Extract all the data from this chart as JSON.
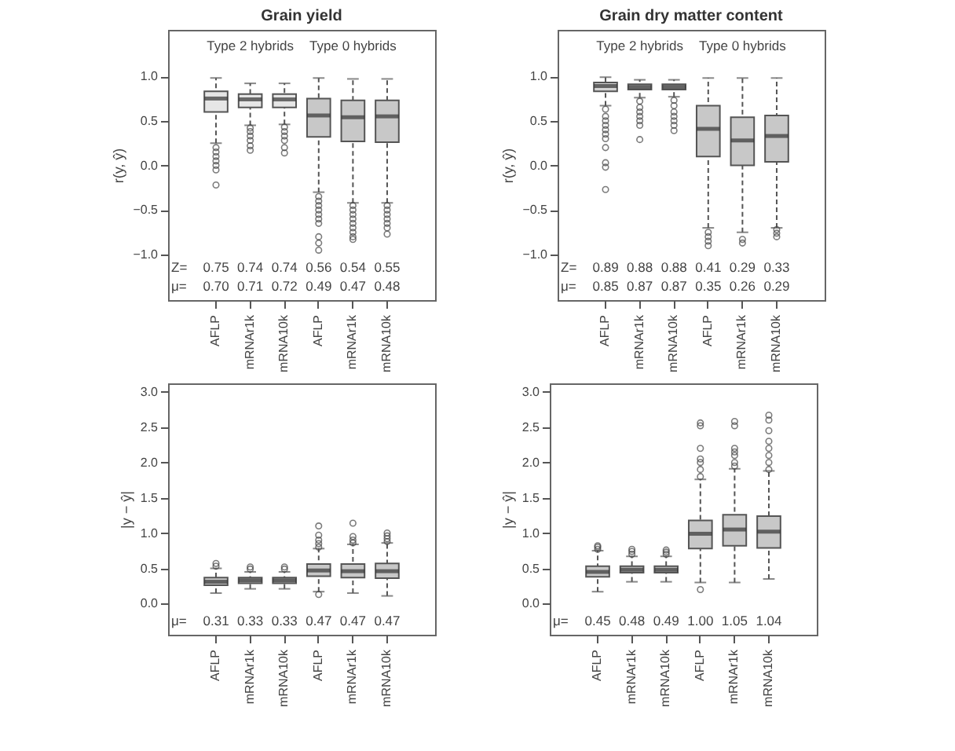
{
  "chart_data": [
    {
      "type": "box",
      "title": "Grain yield",
      "ylabel": "r(y, ŷ)",
      "categories": [
        "AFLP",
        "mRNAr1k",
        "mRNA10k",
        "AFLP",
        "mRNAr1k",
        "mRNA10k"
      ],
      "colors": [
        "#e6e6e6",
        "#e6e6e6",
        "#e6e6e6",
        "#c8c8c8",
        "#c8c8c8",
        "#c8c8c8"
      ],
      "ylim": [
        -1.51,
        1.52
      ],
      "yticks": [
        {
          "value": -1,
          "label": "−1.0"
        },
        {
          "value": -0.5,
          "label": "−0.5"
        },
        {
          "value": 0,
          "label": "0.0"
        },
        {
          "value": 0.5,
          "label": "0.5"
        },
        {
          "value": 1,
          "label": "1.0"
        }
      ],
      "boxes": [
        {
          "low": 0.25,
          "q1": 0.6,
          "median": 0.75,
          "q3": 0.83,
          "high": 0.98,
          "outliers": [
            0.2,
            0.15,
            0.1,
            0.05,
            0.0,
            -0.05,
            -0.22
          ]
        },
        {
          "low": 0.45,
          "q1": 0.65,
          "median": 0.74,
          "q3": 0.8,
          "high": 0.92,
          "outliers": [
            0.42,
            0.38,
            0.33,
            0.28,
            0.22,
            0.17
          ]
        },
        {
          "low": 0.46,
          "q1": 0.65,
          "median": 0.74,
          "q3": 0.8,
          "high": 0.92,
          "outliers": [
            0.43,
            0.38,
            0.33,
            0.28,
            0.2,
            0.14
          ]
        },
        {
          "low": -0.3,
          "q1": 0.32,
          "median": 0.56,
          "q3": 0.75,
          "high": 0.98,
          "outliers": [
            -0.35,
            -0.4,
            -0.45,
            -0.5,
            -0.55,
            -0.6,
            -0.65,
            -0.8,
            -0.87,
            -0.95
          ]
        },
        {
          "low": -0.42,
          "q1": 0.27,
          "median": 0.54,
          "q3": 0.73,
          "high": 0.97,
          "outliers": [
            -0.45,
            -0.5,
            -0.55,
            -0.6,
            -0.65,
            -0.7,
            -0.75,
            -0.8,
            -0.83
          ]
        },
        {
          "low": -0.42,
          "q1": 0.26,
          "median": 0.55,
          "q3": 0.73,
          "high": 0.97,
          "outliers": [
            -0.45,
            -0.5,
            -0.55,
            -0.6,
            -0.65,
            -0.7,
            -0.77
          ]
        }
      ],
      "annotations": [
        "Type 2 hybrids",
        "Type 0 hybrids",
        "Z= 0.75 0.74 0.74 0.56 0.54 0.55",
        "μ= 0.70 0.71 0.72 0.49 0.47 0.48"
      ]
    },
    {
      "type": "box",
      "title": "Grain dry matter content",
      "ylabel": "r(y, ŷ)",
      "categories": [
        "AFLP",
        "mRNAr1k",
        "mRNA10k",
        "AFLP",
        "mRNAr1k",
        "mRNA10k"
      ],
      "colors": [
        "#d4d4d4",
        "#d4d4d4",
        "#d4d4d4",
        "#c8c8c8",
        "#c8c8c8",
        "#c8c8c8"
      ],
      "ylim": [
        -1.51,
        1.52
      ],
      "yticks": [
        {
          "value": -1,
          "label": "−1.0"
        },
        {
          "value": -0.5,
          "label": "−0.5"
        },
        {
          "value": 0,
          "label": "0.0"
        },
        {
          "value": 0.5,
          "label": "0.5"
        },
        {
          "value": 1,
          "label": "1.0"
        }
      ],
      "boxes": [
        {
          "low": 0.67,
          "q1": 0.83,
          "median": 0.89,
          "q3": 0.93,
          "high": 0.99,
          "outliers": [
            0.63,
            0.55,
            0.5,
            0.45,
            0.4,
            0.35,
            0.3,
            0.2,
            0.03,
            -0.02,
            -0.27
          ]
        },
        {
          "low": 0.76,
          "q1": 0.85,
          "median": 0.88,
          "q3": 0.91,
          "high": 0.96,
          "outliers": [
            0.72,
            0.65,
            0.6,
            0.55,
            0.5,
            0.45,
            0.29
          ]
        },
        {
          "low": 0.77,
          "q1": 0.85,
          "median": 0.88,
          "q3": 0.91,
          "high": 0.96,
          "outliers": [
            0.73,
            0.67,
            0.6,
            0.55,
            0.5,
            0.45,
            0.39
          ]
        },
        {
          "low": -0.7,
          "q1": 0.1,
          "median": 0.41,
          "q3": 0.67,
          "high": 0.98,
          "outliers": [
            -0.75,
            -0.8,
            -0.85,
            -0.9
          ]
        },
        {
          "low": -0.75,
          "q1": 0.0,
          "median": 0.28,
          "q3": 0.54,
          "high": 0.98,
          "outliers": [
            -0.83,
            -0.87
          ]
        },
        {
          "low": -0.7,
          "q1": 0.04,
          "median": 0.33,
          "q3": 0.56,
          "high": 0.98,
          "outliers": [
            -0.72,
            -0.76,
            -0.8
          ]
        }
      ],
      "annotations": [
        "Type 2 hybrids",
        "Type 0 hybrids",
        "Z= 0.89 0.88 0.88 0.41 0.29 0.33",
        "μ= 0.85 0.87 0.87 0.35 0.26 0.29"
      ]
    },
    {
      "type": "box",
      "ylabel": "|y − ŷ|",
      "categories": [
        "AFLP",
        "mRNAr1k",
        "mRNA10k",
        "AFLP",
        "mRNAr1k",
        "mRNA10k"
      ],
      "colors": [
        "#c8c8c8",
        "#c8c8c8",
        "#c8c8c8",
        "#c8c8c8",
        "#c8c8c8",
        "#c8c8c8"
      ],
      "ylim": [
        -0.44,
        3.12
      ],
      "yticks": [
        {
          "value": 0,
          "label": "0.0"
        },
        {
          "value": 0.5,
          "label": "0.5"
        },
        {
          "value": 1,
          "label": "1.0"
        },
        {
          "value": 1.5,
          "label": "1.5"
        },
        {
          "value": 2,
          "label": "2.0"
        },
        {
          "value": 2.5,
          "label": "2.5"
        },
        {
          "value": 3,
          "label": "3.0"
        }
      ],
      "boxes": [
        {
          "low": 0.15,
          "q1": 0.26,
          "median": 0.31,
          "q3": 0.37,
          "high": 0.5,
          "outliers": [
            0.53,
            0.57
          ]
        },
        {
          "low": 0.21,
          "q1": 0.29,
          "median": 0.33,
          "q3": 0.37,
          "high": 0.45,
          "outliers": [
            0.49,
            0.52
          ]
        },
        {
          "low": 0.21,
          "q1": 0.29,
          "median": 0.33,
          "q3": 0.37,
          "high": 0.45,
          "outliers": [
            0.49,
            0.52
          ]
        },
        {
          "low": 0.17,
          "q1": 0.39,
          "median": 0.47,
          "q3": 0.56,
          "high": 0.78,
          "outliers": [
            0.13,
            0.8,
            0.85,
            0.9,
            0.97,
            1.1
          ]
        },
        {
          "low": 0.15,
          "q1": 0.37,
          "median": 0.46,
          "q3": 0.56,
          "high": 0.84,
          "outliers": [
            0.86,
            0.9,
            0.95,
            1.14
          ]
        },
        {
          "low": 0.11,
          "q1": 0.36,
          "median": 0.46,
          "q3": 0.57,
          "high": 0.86,
          "outliers": [
            0.88,
            0.92,
            0.96,
            1.0
          ]
        }
      ],
      "annotations": [
        "μ= 0.31 0.33 0.33 0.47 0.47 0.47"
      ]
    },
    {
      "type": "box",
      "ylabel": "|y − ŷ|",
      "categories": [
        "AFLP",
        "mRNAr1k",
        "mRNA10k",
        "AFLP",
        "mRNAr1k",
        "mRNA10k"
      ],
      "colors": [
        "#c8c8c8",
        "#c8c8c8",
        "#c8c8c8",
        "#c8c8c8",
        "#c8c8c8",
        "#c8c8c8"
      ],
      "ylim": [
        -0.44,
        3.12
      ],
      "yticks": [
        {
          "value": 0,
          "label": "0.0"
        },
        {
          "value": 0.5,
          "label": "0.5"
        },
        {
          "value": 1,
          "label": "1.0"
        },
        {
          "value": 1.5,
          "label": "1.5"
        },
        {
          "value": 2,
          "label": "2.0"
        },
        {
          "value": 2.5,
          "label": "2.5"
        },
        {
          "value": 3,
          "label": "3.0"
        }
      ],
      "boxes": [
        {
          "low": 0.17,
          "q1": 0.38,
          "median": 0.45,
          "q3": 0.53,
          "high": 0.75,
          "outliers": [
            0.77,
            0.8,
            0.82
          ]
        },
        {
          "low": 0.31,
          "q1": 0.44,
          "median": 0.48,
          "q3": 0.53,
          "high": 0.67,
          "outliers": [
            0.7,
            0.74,
            0.77
          ]
        },
        {
          "low": 0.31,
          "q1": 0.44,
          "median": 0.48,
          "q3": 0.53,
          "high": 0.67,
          "outliers": [
            0.7,
            0.73,
            0.76
          ]
        },
        {
          "low": 0.3,
          "q1": 0.78,
          "median": 0.99,
          "q3": 1.18,
          "high": 1.76,
          "outliers": [
            0.2,
            1.8,
            1.9,
            2.0,
            2.05,
            2.2,
            2.52,
            2.56
          ]
        },
        {
          "low": 0.3,
          "q1": 0.82,
          "median": 1.05,
          "q3": 1.26,
          "high": 1.91,
          "outliers": [
            1.95,
            2.0,
            2.1,
            2.15,
            2.2,
            2.52,
            2.58
          ]
        },
        {
          "low": 0.35,
          "q1": 0.79,
          "median": 1.02,
          "q3": 1.24,
          "high": 1.88,
          "outliers": [
            1.9,
            2.0,
            2.1,
            2.2,
            2.3,
            2.45,
            2.6,
            2.67
          ]
        }
      ],
      "annotations": [
        "μ= 0.45 0.48 0.49 1.00 1.05 1.04"
      ]
    }
  ]
}
